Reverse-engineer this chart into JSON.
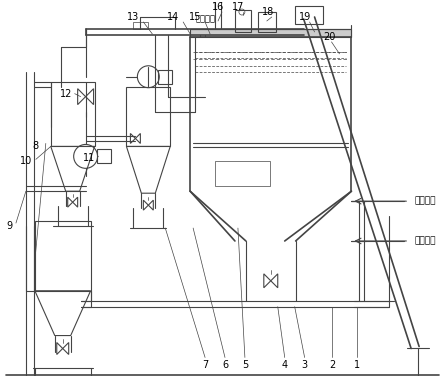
{
  "bg_color": "#ffffff",
  "lc": "#444444",
  "lw": 0.8,
  "tlw": 0.5,
  "thk": 1.2,
  "figsize": [
    4.44,
    3.91
  ],
  "dpi": 100,
  "xlim": [
    0,
    444
  ],
  "ylim": [
    0,
    391
  ]
}
